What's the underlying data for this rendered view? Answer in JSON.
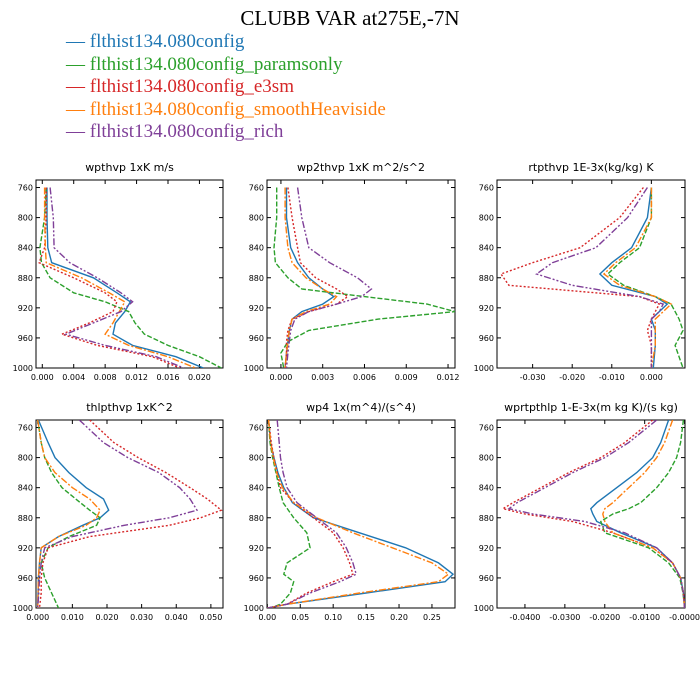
{
  "figure": {
    "title": "CLUBB VAR at275E,-7N"
  },
  "legend": [
    {
      "label": "flthist134.080config",
      "color": "#1f77b4",
      "dash": ""
    },
    {
      "label": "flthist134.080config_paramsonly",
      "color": "#2ca02c",
      "dash": "5,2"
    },
    {
      "label": "flthist134.080config_e3sm",
      "color": "#d62728",
      "dash": "2,2"
    },
    {
      "label": "flthist134.080config_smoothHeaviside",
      "color": "#ff7f0e",
      "dash": "7,2,2,2"
    },
    {
      "label": "flthist134.080config_rich",
      "color": "#7f3f98",
      "dash": "7,2,2,2,2,2"
    }
  ],
  "chart_data": [
    {
      "type": "line",
      "title": "wpthvp 1xK m/s",
      "xlim": [
        -0.0008,
        0.023
      ],
      "xticks": [
        "0.000",
        "0.004",
        "0.008",
        "0.012",
        "0.016",
        "0.020"
      ],
      "xtick_values": [
        0,
        0.004,
        0.008,
        0.012,
        0.016,
        0.02
      ],
      "ylim": [
        1000,
        750
      ],
      "yticks": [
        760,
        800,
        840,
        880,
        920,
        960,
        1000
      ],
      "y": [
        760,
        800,
        840,
        860,
        880,
        900,
        912,
        925,
        940,
        955,
        970,
        985,
        1000
      ],
      "series": [
        {
          "name": "flthist134.080config",
          "values": [
            0.0006,
            0.0006,
            0.0007,
            0.0012,
            0.0065,
            0.0095,
            0.0112,
            0.0105,
            0.0093,
            0.009,
            0.0115,
            0.017,
            0.0205
          ]
        },
        {
          "name": "flthist134.080config_paramsonly",
          "values": [
            0.0005,
            0.0003,
            -0.0003,
            -0.0001,
            0.001,
            0.004,
            0.008,
            0.011,
            0.0118,
            0.013,
            0.016,
            0.02,
            0.0228
          ]
        },
        {
          "name": "flthist134.080config_e3sm",
          "values": [
            0.0005,
            0.0005,
            0.0003,
            -0.0004,
            0.004,
            0.008,
            0.0095,
            0.009,
            0.006,
            0.0025,
            0.007,
            0.014,
            0.0175
          ]
        },
        {
          "name": "flthist134.080config_smoothHeaviside",
          "values": [
            0.0003,
            0.0003,
            0.0004,
            0.0005,
            0.005,
            0.0085,
            0.0105,
            0.0098,
            0.009,
            0.008,
            0.011,
            0.016,
            0.0195
          ]
        },
        {
          "name": "flthist134.080config_rich",
          "values": [
            0.001,
            0.0014,
            0.0015,
            0.0035,
            0.007,
            0.01,
            0.0115,
            0.01,
            0.0065,
            0.003,
            0.008,
            0.0145,
            0.018
          ]
        }
      ]
    },
    {
      "type": "line",
      "title": "wp2thvp 1xK m^2/s^2",
      "xlim": [
        -0.001,
        0.0125
      ],
      "xticks": [
        "0.000",
        "0.003",
        "0.006",
        "0.009",
        "0.012"
      ],
      "xtick_values": [
        0,
        0.003,
        0.006,
        0.009,
        0.012
      ],
      "ylim": [
        1000,
        750
      ],
      "yticks": [
        760,
        800,
        840,
        880,
        920,
        960,
        1000
      ],
      "y": [
        760,
        800,
        840,
        860,
        880,
        895,
        905,
        915,
        925,
        935,
        950,
        965,
        980,
        1000
      ],
      "series": [
        {
          "name": "flthist134.080config",
          "values": [
            0.0004,
            0.0004,
            0.0007,
            0.0012,
            0.002,
            0.003,
            0.0038,
            0.003,
            0.0015,
            0.0008,
            0.0006,
            0.0005,
            0.0004,
            0.0003
          ]
        },
        {
          "name": "flthist134.080config_paramsonly",
          "values": [
            -0.0003,
            -0.0003,
            -0.0005,
            -0.0004,
            0.0005,
            0.0015,
            0.006,
            0.0105,
            0.0125,
            0.007,
            0.002,
            0.0005,
            0.0,
            0.0002
          ]
        },
        {
          "name": "flthist134.080config_e3sm",
          "values": [
            0.0005,
            0.0008,
            0.0012,
            0.0014,
            0.0025,
            0.004,
            0.0048,
            0.004,
            0.002,
            0.0008,
            0.0005,
            0.0004,
            0.0004,
            0.0003
          ]
        },
        {
          "name": "flthist134.080config_smoothHeaviside",
          "values": [
            0.0003,
            0.0003,
            0.0005,
            0.0008,
            0.0018,
            0.003,
            0.004,
            0.0035,
            0.0018,
            0.0008,
            0.0006,
            0.0005,
            0.0004,
            0.0003
          ]
        },
        {
          "name": "flthist134.080config_rich",
          "values": [
            0.0012,
            0.0015,
            0.002,
            0.0035,
            0.0055,
            0.0065,
            0.0058,
            0.004,
            0.002,
            0.001,
            0.0007,
            0.0006,
            0.0005,
            0.0004
          ]
        }
      ]
    },
    {
      "type": "line",
      "title": "rtpthvp 1E-3x(kg/kg) K",
      "xlim": [
        -0.039,
        0.0085
      ],
      "xticks": [
        "-0.030",
        "-0.020",
        "-0.010",
        "0.000"
      ],
      "xtick_values": [
        -0.03,
        -0.02,
        -0.01,
        0.0
      ],
      "ylim": [
        1000,
        750
      ],
      "yticks": [
        760,
        800,
        840,
        880,
        920,
        960,
        1000
      ],
      "y": [
        760,
        800,
        840,
        860,
        875,
        890,
        905,
        915,
        925,
        935,
        950,
        970,
        1000
      ],
      "series": [
        {
          "name": "flthist134.080config",
          "values": [
            0.0,
            -0.001,
            -0.005,
            -0.01,
            -0.013,
            -0.01,
            0.001,
            0.004,
            0.002,
            0.0,
            0.001,
            0.001,
            0.0005
          ]
        },
        {
          "name": "flthist134.080config_paramsonly",
          "values": [
            0.0,
            0.0,
            -0.003,
            -0.008,
            -0.011,
            -0.007,
            0.001,
            0.005,
            0.006,
            0.007,
            0.008,
            0.006,
            0.008
          ]
        },
        {
          "name": "flthist134.080config_e3sm",
          "values": [
            -0.002,
            -0.008,
            -0.018,
            -0.03,
            -0.038,
            -0.036,
            -0.003,
            0.002,
            0.001,
            0.0,
            -0.001,
            0.0,
            0.0
          ]
        },
        {
          "name": "flthist134.080config_smoothHeaviside",
          "values": [
            0.0,
            0.0,
            -0.004,
            -0.009,
            -0.012,
            -0.008,
            0.001,
            0.005,
            0.003,
            0.001,
            0.001,
            0.001,
            0.0
          ]
        },
        {
          "name": "flthist134.080config_rich",
          "values": [
            -0.001,
            -0.006,
            -0.014,
            -0.025,
            -0.029,
            -0.02,
            -0.003,
            0.003,
            0.002,
            0.0,
            0.0,
            0.0,
            0.0
          ]
        }
      ]
    },
    {
      "type": "line",
      "title": "thlpthvp 1xK^2",
      "xlim": [
        -0.0005,
        0.0535
      ],
      "xticks": [
        "0.000",
        "0.010",
        "0.020",
        "0.030",
        "0.040",
        "0.050"
      ],
      "xtick_values": [
        0,
        0.01,
        0.02,
        0.03,
        0.04,
        0.05
      ],
      "ylim": [
        1000,
        750
      ],
      "yticks": [
        760,
        800,
        840,
        880,
        920,
        960,
        1000
      ],
      "y": [
        750,
        780,
        800,
        820,
        840,
        855,
        870,
        880,
        890,
        905,
        920,
        940,
        960,
        980,
        1000
      ],
      "series": [
        {
          "name": "flthist134.080config",
          "values": [
            0.0002,
            0.003,
            0.005,
            0.009,
            0.014,
            0.019,
            0.0205,
            0.018,
            0.013,
            0.006,
            0.001,
            0.0005,
            0.0002,
            0.0001,
            0.0
          ]
        },
        {
          "name": "flthist134.080config_paramsonly",
          "values": [
            0.0,
            0.001,
            0.002,
            0.004,
            0.007,
            0.011,
            0.015,
            0.018,
            0.017,
            0.009,
            0.003,
            0.001,
            0.002,
            0.004,
            0.006
          ]
        },
        {
          "name": "flthist134.080config_e3sm",
          "values": [
            0.015,
            0.022,
            0.029,
            0.037,
            0.044,
            0.049,
            0.053,
            0.047,
            0.038,
            0.015,
            0.003,
            0.0015,
            0.001,
            0.001,
            0.0005
          ]
        },
        {
          "name": "flthist134.080config_smoothHeaviside",
          "values": [
            0.0,
            0.001,
            0.002,
            0.005,
            0.01,
            0.015,
            0.018,
            0.017,
            0.014,
            0.006,
            0.001,
            0.0005,
            0.0002,
            0.0001,
            0.0
          ]
        },
        {
          "name": "flthist134.080config_rich",
          "values": [
            0.012,
            0.019,
            0.026,
            0.035,
            0.041,
            0.044,
            0.046,
            0.038,
            0.025,
            0.01,
            0.002,
            0.001,
            0.0005,
            0.0003,
            0.0
          ]
        }
      ]
    },
    {
      "type": "line",
      "title": "wp4 1x(m^4)/(s^4)",
      "xlim": [
        -0.0005,
        0.285
      ],
      "xticks": [
        "0.00",
        "0.05",
        "0.10",
        "0.15",
        "0.20",
        "0.25"
      ],
      "xtick_values": [
        0,
        0.05,
        0.1,
        0.15,
        0.2,
        0.25
      ],
      "ylim": [
        1000,
        750
      ],
      "yticks": [
        760,
        800,
        840,
        880,
        920,
        960,
        1000
      ],
      "y": [
        750,
        780,
        800,
        820,
        840,
        860,
        880,
        900,
        920,
        940,
        955,
        965,
        980,
        995,
        1000
      ],
      "series": [
        {
          "name": "flthist134.080config",
          "values": [
            0.002,
            0.005,
            0.01,
            0.016,
            0.025,
            0.038,
            0.07,
            0.14,
            0.21,
            0.26,
            0.282,
            0.27,
            0.15,
            0.03,
            0.0
          ]
        },
        {
          "name": "flthist134.080config_paramsonly",
          "values": [
            0.002,
            0.004,
            0.008,
            0.013,
            0.018,
            0.024,
            0.04,
            0.06,
            0.065,
            0.03,
            0.025,
            0.04,
            0.035,
            0.02,
            0.005
          ]
        },
        {
          "name": "flthist134.080config_e3sm",
          "values": [
            0.002,
            0.006,
            0.01,
            0.015,
            0.02,
            0.04,
            0.07,
            0.1,
            0.115,
            0.125,
            0.13,
            0.1,
            0.06,
            0.03,
            0.0
          ]
        },
        {
          "name": "flthist134.080config_smoothHeaviside",
          "values": [
            0.002,
            0.005,
            0.009,
            0.014,
            0.023,
            0.04,
            0.075,
            0.13,
            0.19,
            0.25,
            0.275,
            0.26,
            0.14,
            0.03,
            0.0
          ]
        },
        {
          "name": "flthist134.080config_rich",
          "values": [
            0.015,
            0.018,
            0.02,
            0.024,
            0.03,
            0.045,
            0.075,
            0.105,
            0.12,
            0.13,
            0.135,
            0.11,
            0.065,
            0.03,
            0.0
          ]
        }
      ]
    },
    {
      "type": "line",
      "title": "wprtpthlp 1-E-3x(m kg K)/(s kg)",
      "xlim": [
        -0.047,
        0.0001
      ],
      "xticks": [
        "-0.0400",
        "-0.0300",
        "-0.0200",
        "-0.0100",
        "-0.0000"
      ],
      "xtick_values": [
        -0.04,
        -0.03,
        -0.02,
        -0.01,
        0.0
      ],
      "ylim": [
        1000,
        750
      ],
      "yticks": [
        760,
        800,
        840,
        880,
        920,
        960,
        1000
      ],
      "y": [
        750,
        780,
        800,
        820,
        840,
        860,
        868,
        875,
        885,
        900,
        920,
        940,
        960,
        980,
        1000
      ],
      "series": [
        {
          "name": "flthist134.080config",
          "values": [
            -0.004,
            -0.006,
            -0.008,
            -0.012,
            -0.017,
            -0.022,
            -0.0235,
            -0.023,
            -0.022,
            -0.016,
            -0.007,
            -0.003,
            -0.001,
            -0.0003,
            0.0
          ]
        },
        {
          "name": "flthist134.080config_paramsonly",
          "values": [
            -0.0003,
            -0.001,
            -0.002,
            -0.004,
            -0.007,
            -0.011,
            -0.014,
            -0.018,
            -0.021,
            -0.02,
            -0.009,
            -0.004,
            -0.0012,
            -0.0004,
            0.0
          ]
        },
        {
          "name": "flthist134.080config_e3sm",
          "values": [
            -0.008,
            -0.015,
            -0.021,
            -0.029,
            -0.036,
            -0.043,
            -0.0455,
            -0.04,
            -0.028,
            -0.018,
            -0.008,
            -0.003,
            -0.001,
            -0.0003,
            0.0
          ]
        },
        {
          "name": "flthist134.080config_smoothHeaviside",
          "values": [
            -0.003,
            -0.005,
            -0.007,
            -0.01,
            -0.014,
            -0.018,
            -0.02,
            -0.0205,
            -0.02,
            -0.018,
            -0.008,
            -0.003,
            -0.001,
            -0.0003,
            0.0
          ]
        },
        {
          "name": "flthist134.080config_rich",
          "values": [
            -0.007,
            -0.014,
            -0.02,
            -0.028,
            -0.035,
            -0.042,
            -0.044,
            -0.038,
            -0.025,
            -0.015,
            -0.007,
            -0.003,
            -0.001,
            -0.0003,
            0.0
          ]
        }
      ]
    }
  ]
}
